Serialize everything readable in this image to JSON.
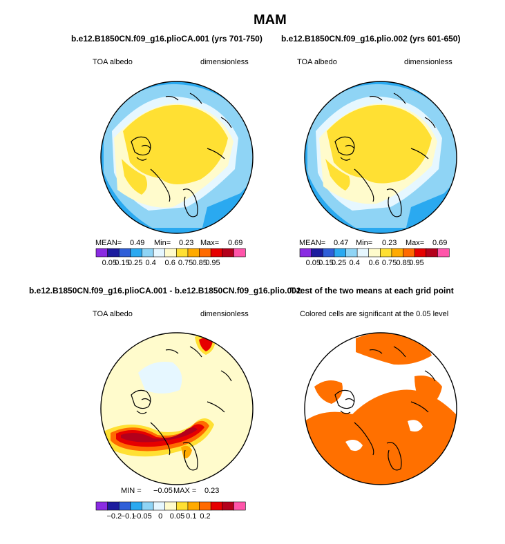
{
  "figure": {
    "title": "MAM"
  },
  "chart_data": [
    {
      "type": "heatmap",
      "projection": "polar stereographic (Northern Hemisphere)",
      "title": "b.e12.B1850CN.f09_g16.plioCA.001 (yrs 701-750)",
      "left_label": "TOA albedo",
      "right_label": "dimensionless",
      "stats": {
        "mean_label": "MEAN=",
        "mean": "0.49",
        "min_label": "Min=",
        "min": "0.23",
        "max_label": "Max=",
        "max": "0.69"
      },
      "colorbar": {
        "levels": [
          "0.05",
          "0.15",
          "0.25",
          "0.4",
          "0.6",
          "0.75",
          "0.85",
          "0.95"
        ],
        "colors": [
          "#8a2be2",
          "#1c1c9e",
          "#2f5fd8",
          "#2aa9f0",
          "#8fd4f5",
          "#e6f7ff",
          "#fffbcc",
          "#ffe033",
          "#ffaa00",
          "#ff6a00",
          "#e60000",
          "#b3001b",
          "#ff55aa"
        ]
      }
    },
    {
      "type": "heatmap",
      "projection": "polar stereographic (Northern Hemisphere)",
      "title": "b.e12.B1850CN.f09_g16.plio.002 (yrs 601-650)",
      "left_label": "TOA albedo",
      "right_label": "dimensionless",
      "stats": {
        "mean_label": "MEAN=",
        "mean": "0.47",
        "min_label": "Min=",
        "min": "0.23",
        "max_label": "Max=",
        "max": "0.69"
      },
      "colorbar": {
        "levels": [
          "0.05",
          "0.15",
          "0.25",
          "0.4",
          "0.6",
          "0.75",
          "0.85",
          "0.95"
        ],
        "colors": [
          "#8a2be2",
          "#1c1c9e",
          "#2f5fd8",
          "#2aa9f0",
          "#8fd4f5",
          "#e6f7ff",
          "#fffbcc",
          "#ffe033",
          "#ffaa00",
          "#ff6a00",
          "#e60000",
          "#b3001b",
          "#ff55aa"
        ]
      }
    },
    {
      "type": "heatmap",
      "projection": "polar stereographic (Northern Hemisphere)",
      "title": "b.e12.B1850CN.f09_g16.plioCA.001 - b.e12.B1850CN.f09_g16.plio.002",
      "left_label": "TOA albedo",
      "right_label": "dimensionless",
      "stats": {
        "min_label": "MIN =",
        "min": "−0.05",
        "max_label": "MAX =",
        "max": "0.23"
      },
      "colorbar": {
        "levels": [
          "−0.2",
          "−0.1",
          "−0.05",
          "0",
          "0.05",
          "0.1",
          "0.2"
        ],
        "colors": [
          "#8a2be2",
          "#1c1c9e",
          "#2f5fd8",
          "#2aa9f0",
          "#8fd4f5",
          "#e6f7ff",
          "#fffbcc",
          "#ffe033",
          "#ffaa00",
          "#ff6a00",
          "#e60000",
          "#b3001b",
          "#ff55aa"
        ]
      }
    },
    {
      "type": "heatmap",
      "projection": "polar stereographic (Northern Hemisphere)",
      "title": "T-test of the two means at each grid point",
      "subtitle": "Colored cells are significant at the 0.05 level",
      "significance_level": 0.05,
      "color": "#ff7000"
    }
  ],
  "colors": {
    "sig": "#ff7000"
  }
}
